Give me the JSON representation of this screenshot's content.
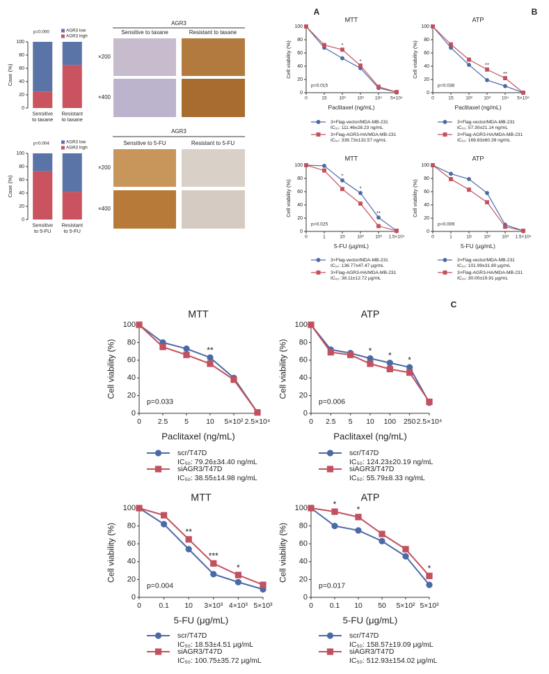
{
  "figure": {
    "labels": [
      "A",
      "B",
      "C"
    ],
    "ihc": [
      {
        "title": "AGR3",
        "columns": [
          "Sensitive to taxane",
          "Resistant to taxane"
        ],
        "rows": [
          "×200",
          "×400"
        ]
      },
      {
        "title": "AGR3",
        "columns": [
          "Sensitive to 5-FU",
          "Resistant to 5-FU"
        ],
        "rows": [
          "×200",
          "×400"
        ]
      }
    ]
  },
  "chart_data": [
    {
      "type": "stacked-bar",
      "annotation": "p=0.000",
      "ylabel": "Case (%)",
      "categories": [
        "Sensitive to taxane",
        "Resistant to taxane"
      ],
      "series": [
        {
          "name": "AGR3 low",
          "color": "#5b74a8",
          "values": [
            75,
            35
          ]
        },
        {
          "name": "AGR3 high",
          "color": "#c9545f",
          "values": [
            25,
            65
          ]
        }
      ],
      "ylim": [
        0,
        100
      ],
      "yticks": [
        0,
        20,
        40,
        60,
        80,
        100
      ]
    },
    {
      "type": "stacked-bar",
      "annotation": "p=0.004",
      "ylabel": "Case (%)",
      "categories": [
        "Sensitive to 5-FU",
        "Resistant to 5-FU"
      ],
      "series": [
        {
          "name": "AGR3 low",
          "color": "#5b74a8",
          "values": [
            27,
            58
          ]
        },
        {
          "name": "AGR3 high",
          "color": "#c9545f",
          "values": [
            73,
            42
          ]
        }
      ],
      "ylim": [
        0,
        100
      ],
      "yticks": [
        0,
        20,
        40,
        60,
        80,
        100
      ]
    },
    {
      "type": "line",
      "title": "MTT",
      "xlabel": "Paclitaxel (ng/mL)",
      "ylabel": "Cell viability (%)",
      "annotation": "p=0.015",
      "categories": [
        "0",
        "15",
        "10²",
        "10³",
        "10⁴",
        "5×10⁴"
      ],
      "series": [
        {
          "name": "3×Flag-vector/MDA-MB-231",
          "ic50": "IC₅₀: 111.46±28.23 ng/mL",
          "color": "#4a6aa5",
          "marker": "circle",
          "values": [
            100,
            68,
            52,
            37,
            7,
            1
          ]
        },
        {
          "name": "3×Flag-AGR3-HA/MDA-MB-231",
          "ic50": "IC₅₀: 339.73±132.57 ng/mL",
          "color": "#c2505e",
          "marker": "square",
          "values": [
            100,
            72,
            65,
            41,
            9,
            1
          ]
        }
      ],
      "stars": [
        {
          "at": "10²",
          "text": "*"
        },
        {
          "at": "10³",
          "text": "*"
        }
      ],
      "ylim": [
        0,
        100
      ],
      "yticks": [
        0,
        20,
        40,
        60,
        80,
        100
      ]
    },
    {
      "type": "line",
      "title": "ATP",
      "xlabel": "Paclitaxel (ng/mL)",
      "ylabel": "Cell viability (%)",
      "annotation": "p=0.038",
      "categories": [
        "0",
        "15",
        "10²",
        "10³",
        "10⁴",
        "5×10⁴"
      ],
      "series": [
        {
          "name": "3×Flag-vector/MDA-MB-231",
          "ic50": "IC₅₀: 57.30±21.14 ng/mL",
          "color": "#4a6aa5",
          "marker": "circle",
          "values": [
            100,
            68,
            42,
            19,
            10,
            0
          ]
        },
        {
          "name": "3×Flag-AGR3-HA/MDA-MB-231",
          "ic50": "IC₅₀: 169.83±60.39 ng/mL",
          "color": "#c2505e",
          "marker": "square",
          "values": [
            100,
            73,
            50,
            35,
            22,
            0
          ]
        }
      ],
      "stars": [
        {
          "at": "10³",
          "text": "**"
        },
        {
          "at": "10⁴",
          "text": "**"
        }
      ],
      "ylim": [
        0,
        100
      ],
      "yticks": [
        0,
        20,
        40,
        60,
        80,
        100
      ]
    },
    {
      "type": "line",
      "title": "MTT",
      "xlabel": "5-FU (μg/mL)",
      "ylabel": "Cell viability (%)",
      "annotation": "p=0.025",
      "categories": [
        "0",
        "1",
        "10",
        "10²",
        "10³",
        "1.5×10⁴"
      ],
      "series": [
        {
          "name": "3×Flag-vector/MDA-MB-231",
          "ic50": "IC₅₀: 136.77±47.47 μg/mL",
          "color": "#4a6aa5",
          "marker": "circle",
          "values": [
            100,
            99,
            77,
            58,
            21,
            1
          ]
        },
        {
          "name": "3×Flag-AGR3-HA/MDA-MB-231",
          "ic50": "IC₅₀: 38.11±12.72 μg/mL",
          "color": "#c2505e",
          "marker": "square",
          "values": [
            100,
            92,
            64,
            42,
            8,
            1
          ]
        }
      ],
      "stars": [
        {
          "at": "10",
          "text": "*"
        },
        {
          "at": "10²",
          "text": "*"
        },
        {
          "at": "10³",
          "text": "**"
        }
      ],
      "ylim": [
        0,
        100
      ],
      "yticks": [
        0,
        20,
        40,
        60,
        80,
        100
      ]
    },
    {
      "type": "line",
      "title": "ATP",
      "xlabel": "5-FU (μg/mL)",
      "ylabel": "Cell viability (%)",
      "annotation": "p=0.009",
      "categories": [
        "0",
        "1",
        "10",
        "10²",
        "10³",
        "1.5×10⁴"
      ],
      "series": [
        {
          "name": "3×Flag-vector/MDA-MB-231",
          "ic50": "IC₅₀: 101.99±31.80 μg/mL",
          "color": "#4a6aa5",
          "marker": "circle",
          "values": [
            100,
            87,
            79,
            58,
            10,
            1
          ]
        },
        {
          "name": "3×Flag-AGR3-HA/MDA-MB-231",
          "ic50": "IC₅₀: 30.00±19.91 μg/mL",
          "color": "#c2505e",
          "marker": "square",
          "values": [
            100,
            79,
            63,
            44,
            7,
            1
          ]
        }
      ],
      "stars": [],
      "ylim": [
        0,
        100
      ],
      "yticks": [
        0,
        20,
        40,
        60,
        80,
        100
      ]
    },
    {
      "type": "line",
      "title": "MTT",
      "xlabel": "Paclitaxel (ng/mL)",
      "ylabel": "Cell viability (%)",
      "annotation": "p=0.033",
      "categories": [
        "0",
        "2.5",
        "5",
        "10",
        "5×10²",
        "2.5×10⁴"
      ],
      "series": [
        {
          "name": "scr/T47D",
          "ic50": "IC₅₀: 79.26±34.40 ng/mL",
          "color": "#4a6aa5",
          "marker": "circle",
          "values": [
            100,
            80,
            73,
            63,
            40,
            1
          ]
        },
        {
          "name": "siAGR3/T47D",
          "ic50": "IC₅₀: 38.55±14.98 ng/mL",
          "color": "#c2505e",
          "marker": "square",
          "values": [
            100,
            75,
            66,
            56,
            38,
            1
          ]
        }
      ],
      "stars": [
        {
          "at": "10",
          "text": "**"
        }
      ],
      "ylim": [
        0,
        100
      ],
      "yticks": [
        0,
        20,
        40,
        60,
        80,
        100
      ]
    },
    {
      "type": "line",
      "title": "ATP",
      "xlabel": "Paclitaxel (ng/mL)",
      "ylabel": "Cell viability (%)",
      "annotation": "p=0.006",
      "categories": [
        "0",
        "2.5",
        "5",
        "10",
        "100",
        "250",
        "2.5×10⁴"
      ],
      "series": [
        {
          "name": "scr/T47D",
          "ic50": "IC₅₀: 124.23±20.19 ng/mL",
          "color": "#4a6aa5",
          "marker": "circle",
          "values": [
            100,
            72,
            68,
            62,
            57,
            52,
            12
          ]
        },
        {
          "name": "siAGR3/T47D",
          "ic50": "IC₅₀: 55.79±8.33 ng/mL",
          "color": "#c2505e",
          "marker": "square",
          "values": [
            100,
            69,
            66,
            56,
            50,
            46,
            13
          ]
        }
      ],
      "stars": [
        {
          "at": "10",
          "text": "*"
        },
        {
          "at": "100",
          "text": "*"
        },
        {
          "at": "250",
          "text": "*"
        }
      ],
      "ylim": [
        0,
        100
      ],
      "yticks": [
        0,
        20,
        40,
        60,
        80,
        100
      ]
    },
    {
      "type": "line",
      "title": "MTT",
      "xlabel": "5-FU (μg/mL)",
      "ylabel": "Cell viability (%)",
      "annotation": "p=0.004",
      "categories": [
        "0",
        "0.1",
        "10",
        "3×10³",
        "4×10³",
        "5×10³"
      ],
      "series": [
        {
          "name": "scr/T47D",
          "ic50": "IC₅₀: 18.53±4.51 μg/mL",
          "color": "#4a6aa5",
          "marker": "circle",
          "values": [
            100,
            82,
            54,
            26,
            17,
            9
          ]
        },
        {
          "name": "siAGR3/T47D",
          "ic50": "IC₅₀: 100.75±35.72 μg/mL",
          "color": "#c2505e",
          "marker": "square",
          "values": [
            100,
            92,
            65,
            38,
            25,
            14
          ]
        }
      ],
      "stars": [
        {
          "at": "10",
          "text": "**"
        },
        {
          "at": "3×10³",
          "text": "***"
        },
        {
          "at": "4×10³",
          "text": "*"
        }
      ],
      "ylim": [
        0,
        100
      ],
      "yticks": [
        0,
        20,
        40,
        60,
        80,
        100
      ]
    },
    {
      "type": "line",
      "title": "ATP",
      "xlabel": "5-FU (μg/mL)",
      "ylabel": "Cell viability (%)",
      "annotation": "p=0.017",
      "categories": [
        "0",
        "0.1",
        "10",
        "50",
        "5×10²",
        "5×10³"
      ],
      "series": [
        {
          "name": "scr/T47D",
          "ic50": "IC₅₀: 158.57±19.09 μg/mL",
          "color": "#4a6aa5",
          "marker": "circle",
          "values": [
            100,
            80,
            75,
            63,
            46,
            14
          ]
        },
        {
          "name": "siAGR3/T47D",
          "ic50": "IC₅₀: 512.93±154.02 μg/mL",
          "color": "#c2505e",
          "marker": "square",
          "values": [
            100,
            96,
            90,
            71,
            54,
            24
          ]
        }
      ],
      "stars": [
        {
          "at": "0.1",
          "text": "*"
        },
        {
          "at": "10",
          "text": "*"
        },
        {
          "at": "5×10³",
          "text": "*"
        }
      ],
      "ylim": [
        0,
        100
      ],
      "yticks": [
        0,
        20,
        40,
        60,
        80,
        100
      ]
    }
  ]
}
